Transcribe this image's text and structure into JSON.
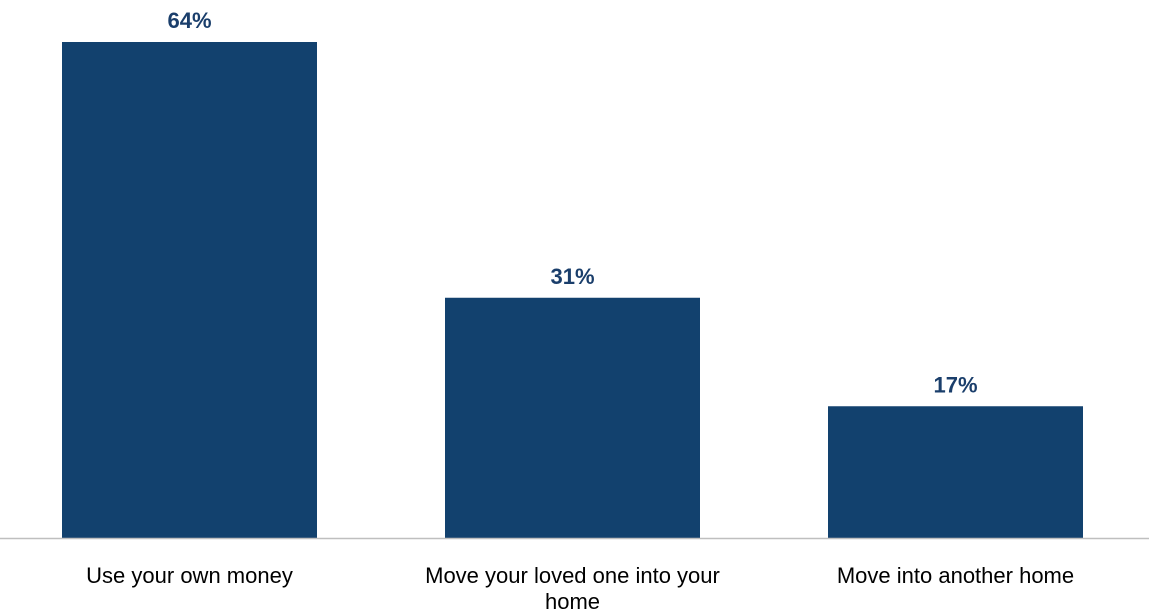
{
  "chart_data": {
    "type": "bar",
    "categories": [
      [
        "Use your own money"
      ],
      [
        "Move your loved one into your",
        "home"
      ],
      [
        "Move into another home"
      ]
    ],
    "values": [
      64,
      31,
      17
    ],
    "value_labels": [
      "64%",
      "31%",
      "17%"
    ],
    "unit": "%",
    "title": "",
    "xlabel": "",
    "ylabel": "",
    "ylim": [
      0,
      64
    ],
    "grid": false,
    "legend": "none"
  },
  "colors": {
    "bar": "#12416e",
    "value_label": "#1a3e6b",
    "axis": "#bfbfbf"
  }
}
